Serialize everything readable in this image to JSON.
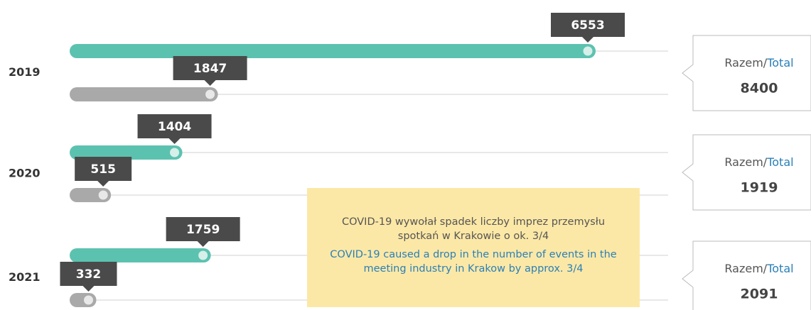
{
  "chart_data": {
    "type": "bar",
    "categories": [
      "2019",
      "2020",
      "2021"
    ],
    "series": [
      {
        "color": "#5cc2b0",
        "values": [
          6553,
          1404,
          1759
        ]
      },
      {
        "color": "#a9a9a9",
        "values": [
          1847,
          515,
          332
        ]
      }
    ],
    "totals": {
      "label": "Razem/",
      "label_en": "Total",
      "values": [
        8400,
        1919,
        2091
      ]
    },
    "annotation": {
      "text_pl": "COVID-19 wywołał spadek liczby imprez przemysłu spotkań w Krakowie o ok. 3/4",
      "text_en": "COVID-19 caused a drop in the number of events in the meeting industry in Krakow by approx. 3/4"
    }
  }
}
